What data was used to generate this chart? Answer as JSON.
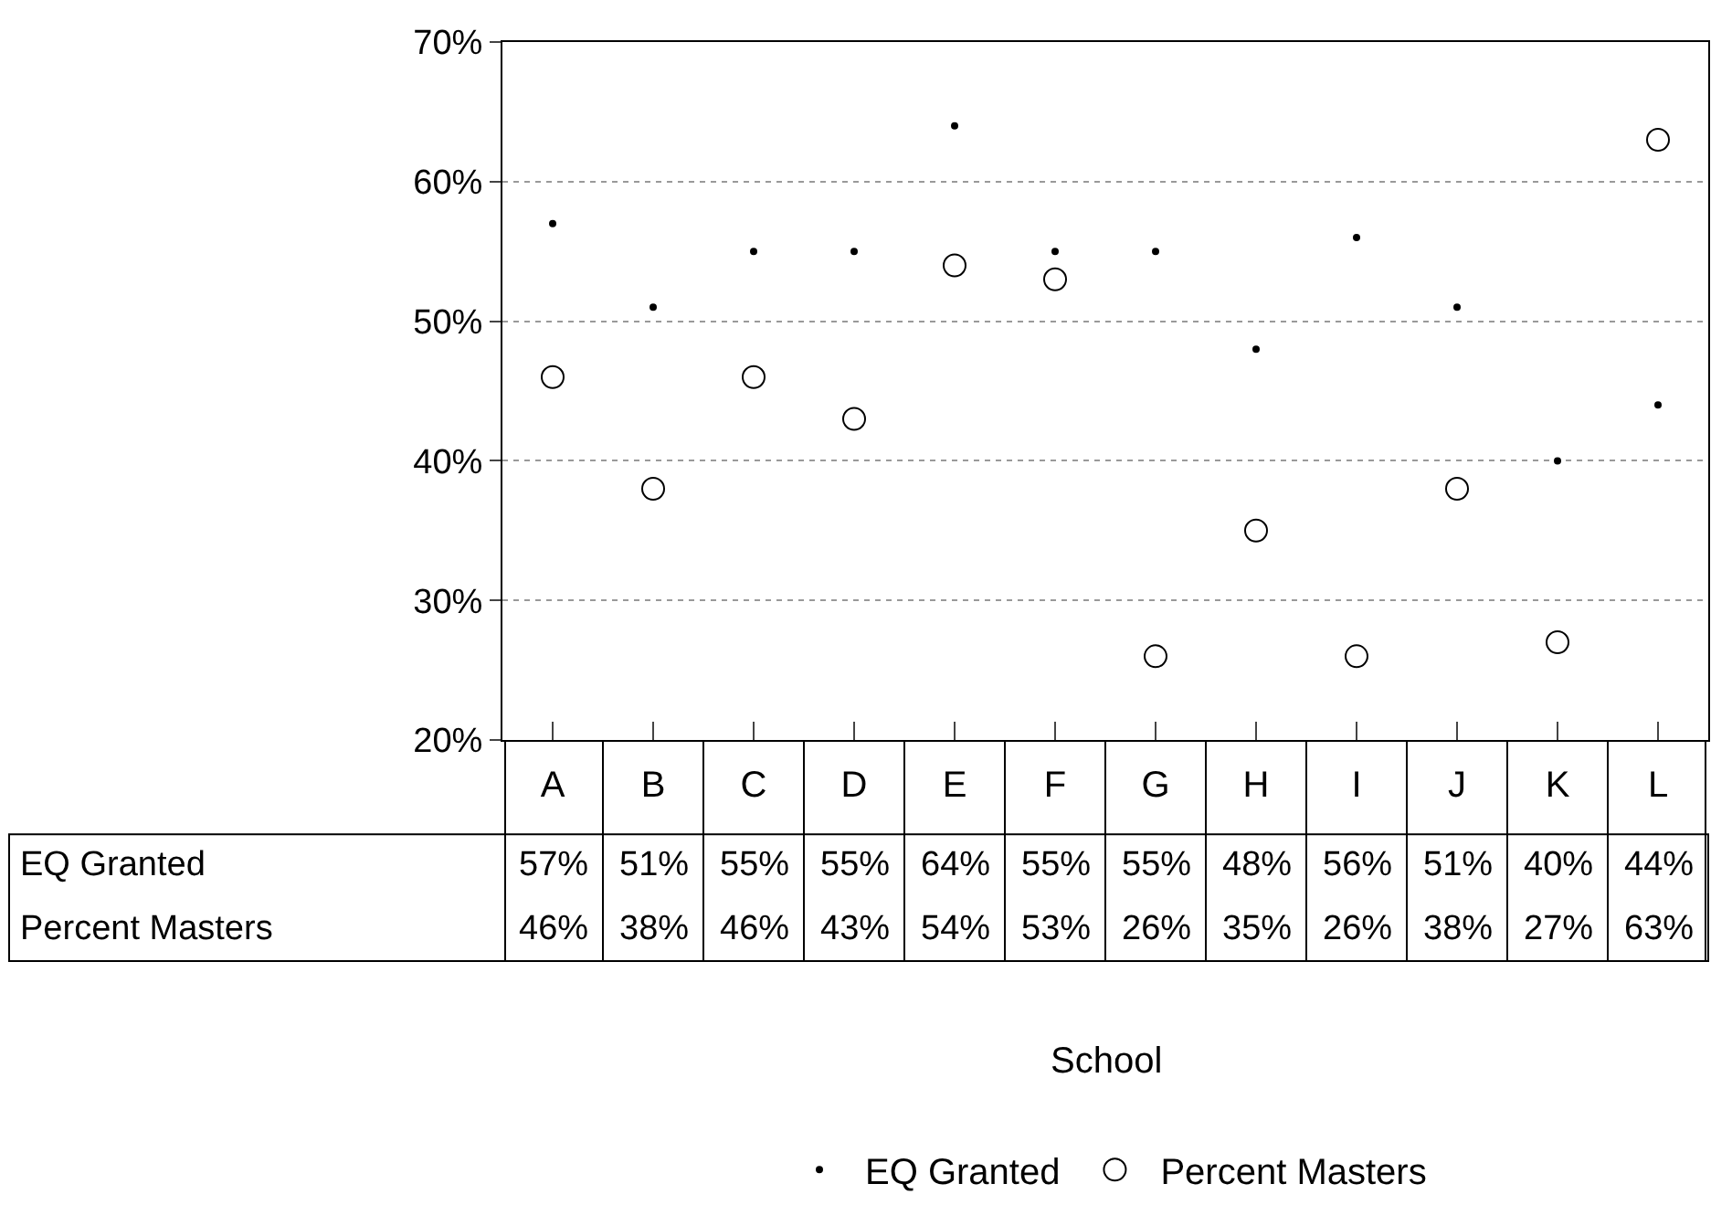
{
  "chart_data": {
    "type": "scatter",
    "annotations": [
      "School"
    ],
    "categories": [
      "A",
      "B",
      "C",
      "D",
      "E",
      "F",
      "G",
      "H",
      "I",
      "J",
      "K",
      "L"
    ],
    "series": [
      {
        "name": "EQ Granted",
        "color": "#000000",
        "marker": "dot",
        "values": [
          57,
          51,
          55,
          55,
          64,
          55,
          55,
          48,
          56,
          51,
          40,
          44
        ],
        "value_labels": [
          "57%",
          "51%",
          "55%",
          "55%",
          "64%",
          "55%",
          "55%",
          "48%",
          "56%",
          "51%",
          "40%",
          "44%"
        ]
      },
      {
        "name": "Percent Masters",
        "color": "#000000",
        "marker": "circle-open",
        "values": [
          46,
          38,
          46,
          43,
          54,
          53,
          26,
          35,
          26,
          38,
          27,
          63
        ],
        "value_labels": [
          "46%",
          "38%",
          "46%",
          "43%",
          "54%",
          "53%",
          "26%",
          "35%",
          "26%",
          "38%",
          "27%",
          "63%"
        ]
      }
    ],
    "ylim": [
      20,
      70
    ],
    "yticks": [
      {
        "value": 20,
        "label": "20%"
      },
      {
        "value": 30,
        "label": "30%"
      },
      {
        "value": 40,
        "label": "40%"
      },
      {
        "value": 50,
        "label": "50%"
      },
      {
        "value": 60,
        "label": "60%"
      },
      {
        "value": 70,
        "label": "70%"
      }
    ],
    "grid": "y",
    "legend": "bottom"
  }
}
